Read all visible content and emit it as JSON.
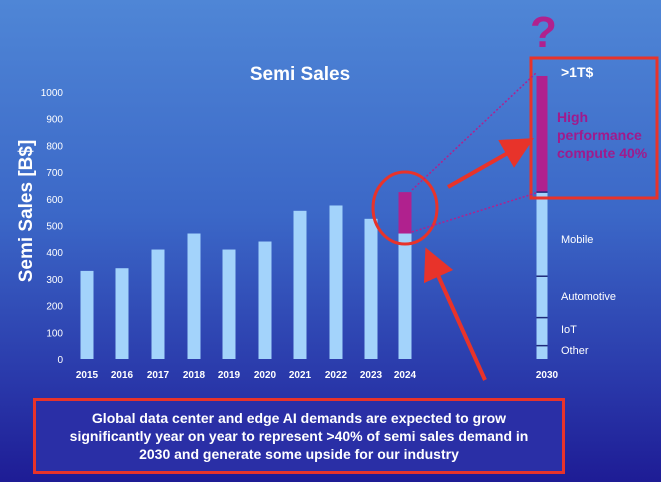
{
  "chart_data": {
    "type": "bar",
    "title": "Semi Sales",
    "ylabel": "Semi Sales [B$]",
    "xlabel": "",
    "ylim": [
      0,
      1000
    ],
    "yticks": [
      "0",
      "100",
      "200",
      "300",
      "400",
      "500",
      "600",
      "700",
      "800",
      "900",
      "1000"
    ],
    "categories": [
      "2015",
      "2016",
      "2017",
      "2018",
      "2019",
      "2020",
      "2021",
      "2022",
      "2023",
      "2024"
    ],
    "values": [
      330,
      340,
      410,
      470,
      410,
      440,
      555,
      575,
      525,
      625
    ],
    "segment_2024": {
      "base": 470,
      "hpc_top": 625
    },
    "forecast": {
      "year": "2030",
      "total_label": ">1T$",
      "total": 1060,
      "hpc_share_label": "High performance compute 40%",
      "segments": [
        {
          "name": "Other",
          "top": 50
        },
        {
          "name": "IoT",
          "top": 155
        },
        {
          "name": "Automotive",
          "top": 310
        },
        {
          "name": "Mobile",
          "top": 625
        },
        {
          "name": "High performance compute",
          "top": 1060
        }
      ]
    },
    "annotation_q": "?",
    "callout": "Global data center and edge AI demands are expected to grow significantly year on year to represent >40% of semi sales demand in 2030 and generate some upside for our industry"
  },
  "colors": {
    "bar": "#a3d3fb",
    "hpc": "#b0218e",
    "highlight": "#e8332a",
    "segment_line": "#1f2a7a"
  }
}
